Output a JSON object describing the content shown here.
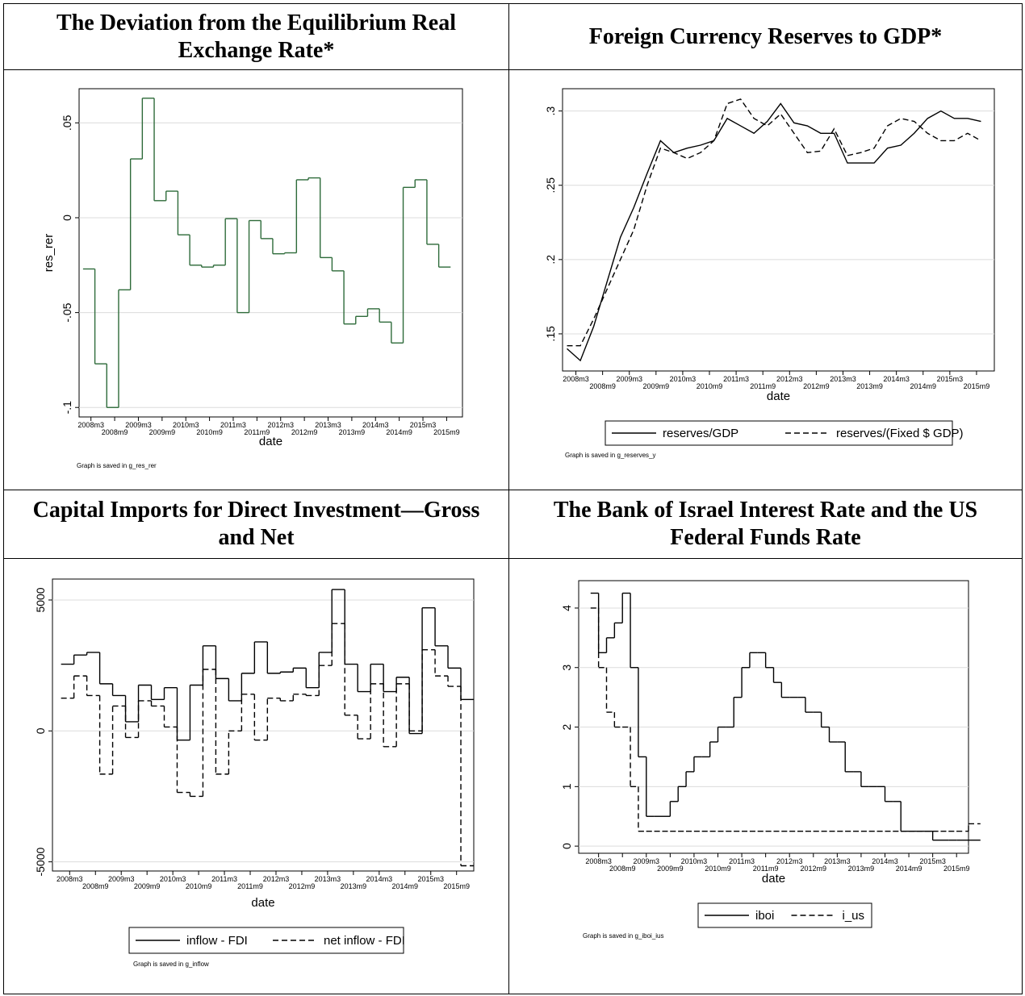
{
  "chart_data": [
    {
      "type": "line",
      "title": "The Deviation from the Equilibrium Real Exchange Rate*",
      "xlabel": "date",
      "ylabel": "res_rer",
      "note": "Graph is saved in g_res_rer",
      "step": true,
      "grid": true,
      "x": [
        "2008m1",
        "2008m4",
        "2008m7",
        "2008m10",
        "2009m1",
        "2009m4",
        "2009m7",
        "2009m10",
        "2010m1",
        "2010m4",
        "2010m7",
        "2010m10",
        "2011m1",
        "2011m4",
        "2011m7",
        "2011m10",
        "2012m1",
        "2012m4",
        "2012m7",
        "2012m10",
        "2013m1",
        "2013m4",
        "2013m7",
        "2013m10",
        "2014m1",
        "2014m4",
        "2014m7",
        "2014m10",
        "2015m1",
        "2015m4",
        "2015m7"
      ],
      "series": [
        {
          "color": "#2e6b3a",
          "line_style": "solid",
          "values": [
            -0.027,
            -0.077,
            -0.1,
            -0.038,
            0.031,
            0.063,
            0.009,
            0.014,
            -0.009,
            -0.025,
            -0.026,
            -0.025,
            -0.0005,
            -0.05,
            -0.0015,
            -0.011,
            -0.019,
            -0.0185,
            0.02,
            0.021,
            -0.021,
            -0.028,
            -0.056,
            -0.052,
            -0.048,
            -0.055,
            -0.066,
            0.016,
            0.02,
            -0.014,
            -0.026
          ]
        }
      ],
      "xlim": [
        "2007m12",
        "2016m1"
      ],
      "ylim": [
        -0.105,
        0.068
      ],
      "xticks": [
        "2008m3",
        "2008m9",
        "2009m3",
        "2009m9",
        "2010m3",
        "2010m9",
        "2011m3",
        "2011m9",
        "2012m3",
        "2012m9",
        "2013m3",
        "2013m9",
        "2014m3",
        "2014m9",
        "2015m3",
        "2015m9"
      ],
      "yticks": [
        {
          "value": -0.1,
          "label": "-.1"
        },
        {
          "value": -0.05,
          "label": "-.05"
        },
        0,
        {
          "value": 0.05,
          "label": ".05"
        }
      ]
    },
    {
      "type": "line",
      "title": "Foreign Currency Reserves to GDP*",
      "xlabel": "date",
      "note": "Graph is saved in g_reserves_y",
      "step": false,
      "grid": true,
      "legend": "bottom",
      "x": [
        "2008m1",
        "2008m4",
        "2008m7",
        "2008m10",
        "2009m1",
        "2009m4",
        "2009m7",
        "2009m10",
        "2010m1",
        "2010m4",
        "2010m7",
        "2010m10",
        "2011m1",
        "2011m4",
        "2011m7",
        "2011m10",
        "2012m1",
        "2012m4",
        "2012m7",
        "2012m10",
        "2013m1",
        "2013m4",
        "2013m7",
        "2013m10",
        "2014m1",
        "2014m4",
        "2014m7",
        "2014m10",
        "2015m1",
        "2015m4",
        "2015m7",
        "2015m10"
      ],
      "series": [
        {
          "name": "reserves/GDP",
          "color": "#000000",
          "line_style": "solid",
          "values": [
            0.14,
            0.132,
            0.155,
            0.185,
            0.215,
            0.235,
            0.258,
            0.28,
            0.272,
            0.275,
            0.277,
            0.28,
            0.295,
            0.29,
            0.285,
            0.293,
            0.305,
            0.292,
            0.29,
            0.285,
            0.285,
            0.265,
            0.265,
            0.265,
            0.275,
            0.277,
            0.285,
            0.295,
            0.3,
            0.295,
            0.295,
            0.293
          ]
        },
        {
          "name": "reserves/(Fixed $ GDP)",
          "color": "#000000",
          "line_style": "dashed",
          "values": [
            0.142,
            0.142,
            0.16,
            0.18,
            0.2,
            0.22,
            0.25,
            0.275,
            0.272,
            0.268,
            0.272,
            0.28,
            0.305,
            0.308,
            0.295,
            0.29,
            0.298,
            0.285,
            0.272,
            0.273,
            0.288,
            0.27,
            0.272,
            0.275,
            0.29,
            0.295,
            0.293,
            0.285,
            0.28,
            0.28,
            0.285,
            0.28
          ]
        }
      ],
      "xlim": [
        "2007m12",
        "2016m1"
      ],
      "ylim": [
        0.125,
        0.315
      ],
      "xticks": [
        "2008m3",
        "2008m9",
        "2009m3",
        "2009m9",
        "2010m3",
        "2010m9",
        "2011m3",
        "2011m9",
        "2012m3",
        "2012m9",
        "2013m3",
        "2013m9",
        "2014m3",
        "2014m9",
        "2015m3",
        "2015m9"
      ],
      "yticks": [
        {
          "value": 0.15,
          "label": ".15"
        },
        {
          "value": 0.2,
          "label": ".2"
        },
        {
          "value": 0.25,
          "label": ".25"
        },
        {
          "value": 0.3,
          "label": ".3"
        }
      ]
    },
    {
      "type": "line",
      "title": "Capital Imports for Direct Investment—Gross and Net",
      "xlabel": "date",
      "note": "Graph is saved in g_inflow",
      "step": true,
      "grid": true,
      "legend": "bottom",
      "x": [
        "2008m1",
        "2008m4",
        "2008m7",
        "2008m10",
        "2009m1",
        "2009m4",
        "2009m7",
        "2009m10",
        "2010m1",
        "2010m4",
        "2010m7",
        "2010m10",
        "2011m1",
        "2011m4",
        "2011m7",
        "2011m10",
        "2012m1",
        "2012m4",
        "2012m7",
        "2012m10",
        "2013m1",
        "2013m4",
        "2013m7",
        "2013m10",
        "2014m1",
        "2014m4",
        "2014m7",
        "2014m10",
        "2015m1",
        "2015m4",
        "2015m7",
        "2015m10"
      ],
      "series": [
        {
          "name": "inflow - FDI",
          "color": "#000000",
          "line_style": "solid",
          "values": [
            2550,
            2900,
            3000,
            1800,
            1350,
            350,
            1750,
            1200,
            1650,
            -350,
            1750,
            3250,
            2000,
            1150,
            2200,
            3400,
            2200,
            2250,
            2400,
            1650,
            3000,
            5400,
            2550,
            1500,
            2550,
            1500,
            2050,
            -100,
            4700,
            3250,
            2400,
            1200
          ]
        },
        {
          "name": "net inflow - FDI",
          "color": "#000000",
          "line_style": "dashed",
          "values": [
            1250,
            2100,
            1350,
            -1650,
            950,
            -250,
            1150,
            950,
            150,
            -2350,
            -2500,
            2350,
            -1650,
            0,
            1400,
            -350,
            1250,
            1150,
            1400,
            1350,
            2500,
            4100,
            600,
            -300,
            1800,
            -600,
            1800,
            0,
            3100,
            2100,
            1700,
            -5150
          ]
        }
      ],
      "xlim": [
        "2007m11",
        "2016m1"
      ],
      "ylim": [
        -5350,
        5800
      ],
      "xticks": [
        "2008m3",
        "2008m9",
        "2009m3",
        "2009m9",
        "2010m3",
        "2010m9",
        "2011m3",
        "2011m9",
        "2012m3",
        "2012m9",
        "2013m3",
        "2013m9",
        "2014m3",
        "2014m9",
        "2015m3",
        "2015m9"
      ],
      "yticks": [
        -5000,
        0,
        5000
      ]
    },
    {
      "type": "line",
      "title": "The Bank of Israel Interest Rate and the US Federal Funds Rate",
      "xlabel": "date",
      "note": "Graph is saved in g_iboi_ius",
      "step": true,
      "grid": true,
      "legend": "bottom",
      "x": [
        "2008m1",
        "2008m3",
        "2008m5",
        "2008m7",
        "2008m9",
        "2008m11",
        "2009m1",
        "2009m3",
        "2009m5",
        "2009m7",
        "2009m9",
        "2009m11",
        "2010m1",
        "2010m3",
        "2010m5",
        "2010m7",
        "2010m9",
        "2010m11",
        "2011m1",
        "2011m3",
        "2011m5",
        "2011m7",
        "2011m9",
        "2011m11",
        "2012m1",
        "2012m3",
        "2012m5",
        "2012m7",
        "2012m9",
        "2012m11",
        "2013m1",
        "2013m3",
        "2013m5",
        "2013m7",
        "2013m9",
        "2013m11",
        "2014m1",
        "2014m3",
        "2014m5",
        "2014m7",
        "2014m9",
        "2014m11",
        "2015m1",
        "2015m3",
        "2015m5",
        "2015m7",
        "2015m9",
        "2015m12"
      ],
      "series": [
        {
          "name": "iboi",
          "color": "#000000",
          "line_style": "solid",
          "values": [
            4.25,
            3.25,
            3.5,
            3.75,
            4.25,
            3.0,
            1.5,
            0.5,
            0.5,
            0.5,
            0.75,
            1.0,
            1.25,
            1.5,
            1.5,
            1.75,
            2.0,
            2.0,
            2.5,
            3.0,
            3.25,
            3.25,
            3.0,
            2.75,
            2.5,
            2.5,
            2.5,
            2.25,
            2.25,
            2.0,
            1.75,
            1.75,
            1.25,
            1.25,
            1.0,
            1.0,
            1.0,
            0.75,
            0.75,
            0.25,
            0.25,
            0.25,
            0.25,
            0.1,
            0.1,
            0.1,
            0.1,
            0.1
          ]
        },
        {
          "name": "i_us",
          "color": "#000000",
          "line_style": "dashed",
          "values": [
            4.0,
            3.0,
            2.25,
            2.0,
            2.0,
            1.0,
            0.25,
            0.25,
            0.25,
            0.25,
            0.25,
            0.25,
            0.25,
            0.25,
            0.25,
            0.25,
            0.25,
            0.25,
            0.25,
            0.25,
            0.25,
            0.25,
            0.25,
            0.25,
            0.25,
            0.25,
            0.25,
            0.25,
            0.25,
            0.25,
            0.25,
            0.25,
            0.25,
            0.25,
            0.25,
            0.25,
            0.25,
            0.25,
            0.25,
            0.25,
            0.25,
            0.25,
            0.25,
            0.25,
            0.25,
            0.25,
            0.25,
            0.375
          ]
        }
      ],
      "xlim": [
        "2007m10",
        "2015m12"
      ],
      "ylim": [
        -0.12,
        4.46
      ],
      "xticks": [
        "2008m3",
        "2008m9",
        "2009m3",
        "2009m9",
        "2010m3",
        "2010m9",
        "2011m3",
        "2011m9",
        "2012m3",
        "2012m9",
        "2013m3",
        "2013m9",
        "2014m3",
        "2014m9",
        "2015m3",
        "2015m9"
      ],
      "yticks": [
        0,
        1,
        2,
        3,
        4
      ]
    }
  ]
}
